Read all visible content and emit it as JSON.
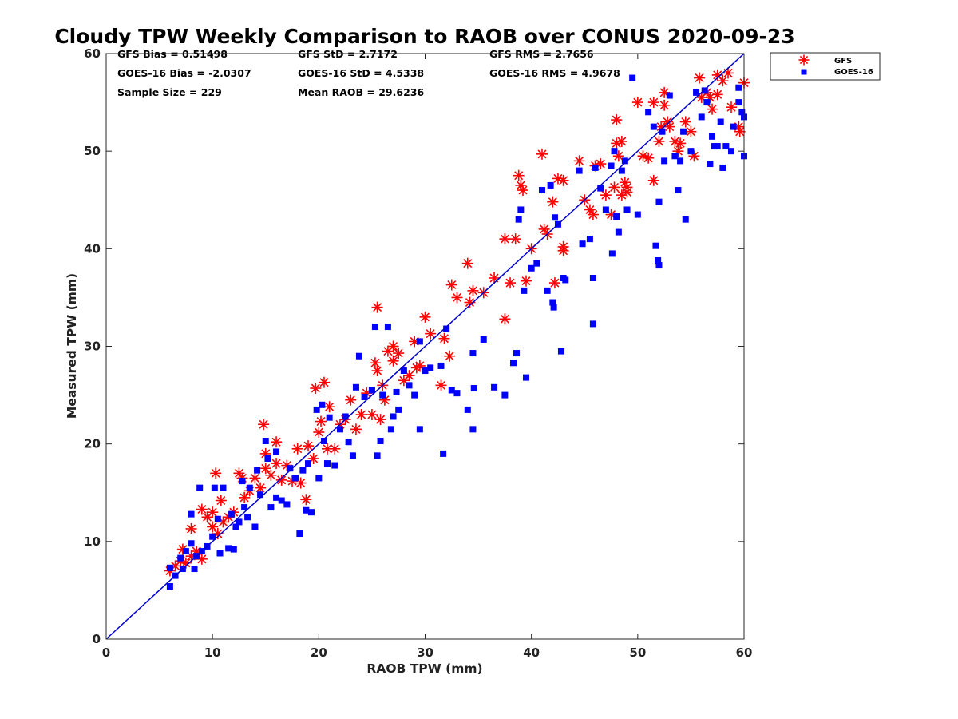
{
  "chart_data": {
    "type": "scatter",
    "title": "Cloudy TPW Weekly Comparison to RAOB over CONUS 2020-09-23",
    "xlabel": "RAOB TPW (mm)",
    "ylabel": "Measured TPW (mm)",
    "xlim": [
      0,
      60
    ],
    "ylim": [
      0,
      60
    ],
    "xticks": [
      0,
      10,
      20,
      30,
      40,
      50,
      60
    ],
    "yticks": [
      0,
      10,
      20,
      30,
      40,
      50,
      60
    ],
    "grid": false,
    "legend_position": "top-right, outside plot",
    "reference_line": {
      "from": [
        0,
        0
      ],
      "to": [
        60,
        60
      ],
      "color": "#0000cc"
    },
    "stats": {
      "gfs_bias": "GFS Bias = 0.51498",
      "gfs_std": "GFS StD = 2.7172",
      "gfs_rms": "GFS RMS = 2.7656",
      "goes_bias": "GOES-16 Bias = -2.0307",
      "goes_std": "GOES-16 StD = 4.5338",
      "goes_rms": "GOES-16 RMS = 4.9678",
      "sample_size": "Sample Size = 229",
      "mean_raob": "Mean RAOB = 29.6236"
    },
    "series": [
      {
        "name": "GFS",
        "marker": "asterisk",
        "color": "#ff0000",
        "points": [
          [
            6,
            7
          ],
          [
            6.5,
            7.5
          ],
          [
            7,
            8
          ],
          [
            7.2,
            9.2
          ],
          [
            7.5,
            7.8
          ],
          [
            8,
            8.5
          ],
          [
            8,
            11.3
          ],
          [
            8.5,
            9
          ],
          [
            9,
            8.2
          ],
          [
            9,
            13.3
          ],
          [
            9.5,
            12.5
          ],
          [
            10,
            11.5
          ],
          [
            10,
            13
          ],
          [
            10.3,
            17
          ],
          [
            10.5,
            10.8
          ],
          [
            10.8,
            14.2
          ],
          [
            11,
            12
          ],
          [
            11.5,
            12.5
          ],
          [
            12,
            13
          ],
          [
            12.5,
            17
          ],
          [
            12.8,
            16.5
          ],
          [
            13,
            14.5
          ],
          [
            13.5,
            15.2
          ],
          [
            14,
            16.5
          ],
          [
            14.5,
            15.5
          ],
          [
            14.8,
            22
          ],
          [
            15,
            19
          ],
          [
            15,
            17.5
          ],
          [
            15.5,
            16.8
          ],
          [
            16,
            18
          ],
          [
            16,
            20.2
          ],
          [
            16.5,
            16.3
          ],
          [
            17,
            17.8
          ],
          [
            17.5,
            16.2
          ],
          [
            18,
            19.5
          ],
          [
            18.3,
            16
          ],
          [
            18.8,
            14.3
          ],
          [
            19,
            19.8
          ],
          [
            19.5,
            18.5
          ],
          [
            19.7,
            25.7
          ],
          [
            20,
            21.2
          ],
          [
            20.2,
            22.3
          ],
          [
            20.5,
            26.3
          ],
          [
            20.8,
            19.5
          ],
          [
            21,
            23.8
          ],
          [
            21.5,
            19.5
          ],
          [
            22,
            22
          ],
          [
            22.5,
            22.5
          ],
          [
            23,
            24.5
          ],
          [
            23.5,
            21.5
          ],
          [
            24,
            23
          ],
          [
            24.5,
            25.2
          ],
          [
            25,
            23
          ],
          [
            25.3,
            28.3
          ],
          [
            25.5,
            27.5
          ],
          [
            25.5,
            34
          ],
          [
            25.8,
            22.5
          ],
          [
            26,
            26
          ],
          [
            26.2,
            24.5
          ],
          [
            26.5,
            29.5
          ],
          [
            27,
            28.5
          ],
          [
            27,
            30
          ],
          [
            27.5,
            29.3
          ],
          [
            28,
            26.5
          ],
          [
            28.5,
            27
          ],
          [
            29,
            30.5
          ],
          [
            29.2,
            27.8
          ],
          [
            29.5,
            28
          ],
          [
            30,
            33
          ],
          [
            30.5,
            31.3
          ],
          [
            31.5,
            26
          ],
          [
            31.8,
            30.8
          ],
          [
            32.3,
            29
          ],
          [
            32.5,
            36.3
          ],
          [
            33,
            35
          ],
          [
            34,
            38.5
          ],
          [
            34.2,
            34.5
          ],
          [
            34.5,
            35.7
          ],
          [
            35.5,
            35.5
          ],
          [
            36.5,
            37
          ],
          [
            37.5,
            41
          ],
          [
            37.5,
            32.8
          ],
          [
            38,
            36.5
          ],
          [
            38.5,
            41
          ],
          [
            38.8,
            47.5
          ],
          [
            39,
            46.5
          ],
          [
            39.2,
            46
          ],
          [
            39.5,
            36.7
          ],
          [
            40,
            40
          ],
          [
            41,
            49.7
          ],
          [
            41.2,
            42
          ],
          [
            41.5,
            41.5
          ],
          [
            42,
            44.8
          ],
          [
            42.2,
            36.5
          ],
          [
            42.5,
            47.2
          ],
          [
            43,
            39.8
          ],
          [
            43,
            40.2
          ],
          [
            43,
            47
          ],
          [
            44.5,
            49
          ],
          [
            45,
            45
          ],
          [
            45.5,
            44
          ],
          [
            45.8,
            43.5
          ],
          [
            46,
            48.5
          ],
          [
            46.5,
            48.7
          ],
          [
            47,
            45.5
          ],
          [
            47.5,
            43.5
          ],
          [
            47.8,
            46.3
          ],
          [
            48,
            50.8
          ],
          [
            48,
            53.2
          ],
          [
            48.2,
            49.5
          ],
          [
            48.5,
            51
          ],
          [
            48.5,
            45.5
          ],
          [
            48.8,
            46.8
          ],
          [
            49,
            45.8
          ],
          [
            49,
            46.3
          ],
          [
            50,
            55
          ],
          [
            50.5,
            49.5
          ],
          [
            51,
            49.3
          ],
          [
            51.5,
            55
          ],
          [
            51.5,
            47
          ],
          [
            52,
            51
          ],
          [
            52.2,
            52.5
          ],
          [
            52.5,
            56
          ],
          [
            52.5,
            54.7
          ],
          [
            52.8,
            53
          ],
          [
            53,
            52.5
          ],
          [
            53.5,
            51
          ],
          [
            53.8,
            50
          ],
          [
            54,
            50.8
          ],
          [
            54.5,
            53
          ],
          [
            55,
            52
          ],
          [
            55.3,
            49.5
          ],
          [
            55.8,
            57.5
          ],
          [
            56,
            55.5
          ],
          [
            56.5,
            56
          ],
          [
            56.8,
            55.5
          ],
          [
            57,
            54.3
          ],
          [
            57.5,
            55.8
          ],
          [
            57.5,
            57.8
          ],
          [
            58,
            57.2
          ],
          [
            58.5,
            58
          ],
          [
            58.8,
            54.5
          ],
          [
            59.5,
            52.5
          ],
          [
            59.6,
            52
          ],
          [
            60,
            57
          ]
        ]
      },
      {
        "name": "GOES-16",
        "marker": "square",
        "color": "#0000ff",
        "points": [
          [
            6,
            5.4
          ],
          [
            6,
            7.3
          ],
          [
            6.5,
            6.5
          ],
          [
            7,
            8.3
          ],
          [
            7.2,
            7.2
          ],
          [
            7.5,
            9
          ],
          [
            8,
            9.8
          ],
          [
            8,
            12.8
          ],
          [
            8.3,
            7.2
          ],
          [
            8.5,
            8.5
          ],
          [
            8.8,
            15.5
          ],
          [
            9,
            9
          ],
          [
            9.5,
            9.5
          ],
          [
            10,
            10.5
          ],
          [
            10.2,
            15.5
          ],
          [
            10.5,
            12.3
          ],
          [
            10.7,
            8.8
          ],
          [
            11,
            15.5
          ],
          [
            11.5,
            9.3
          ],
          [
            11.8,
            12.8
          ],
          [
            12,
            9.2
          ],
          [
            12.2,
            11.5
          ],
          [
            12.5,
            12
          ],
          [
            12.8,
            16.2
          ],
          [
            13,
            13.5
          ],
          [
            13.3,
            12.5
          ],
          [
            13.5,
            15.5
          ],
          [
            14,
            11.5
          ],
          [
            14.2,
            17.3
          ],
          [
            14.5,
            14.8
          ],
          [
            15,
            20.3
          ],
          [
            15.2,
            18.5
          ],
          [
            15.5,
            13.5
          ],
          [
            16,
            19.2
          ],
          [
            16,
            14.5
          ],
          [
            16.5,
            14.2
          ],
          [
            17,
            13.8
          ],
          [
            17.3,
            17.5
          ],
          [
            17.8,
            16.5
          ],
          [
            18.2,
            10.8
          ],
          [
            18.5,
            17.3
          ],
          [
            18.8,
            13.2
          ],
          [
            19,
            18
          ],
          [
            19.3,
            13
          ],
          [
            19.8,
            23.5
          ],
          [
            20,
            16.5
          ],
          [
            20.3,
            24
          ],
          [
            20.5,
            20.3
          ],
          [
            20.8,
            18
          ],
          [
            21,
            22.7
          ],
          [
            21.5,
            17.8
          ],
          [
            22,
            21.5
          ],
          [
            22.5,
            22.8
          ],
          [
            22.8,
            20.2
          ],
          [
            23.2,
            18.8
          ],
          [
            23.5,
            25.8
          ],
          [
            23.8,
            29
          ],
          [
            24.3,
            24.8
          ],
          [
            25,
            25.5
          ],
          [
            25.3,
            32
          ],
          [
            25.5,
            18.8
          ],
          [
            25.8,
            20.3
          ],
          [
            26,
            25
          ],
          [
            26.5,
            32
          ],
          [
            26.8,
            21.5
          ],
          [
            27,
            22.8
          ],
          [
            27.3,
            25.3
          ],
          [
            27.5,
            23.5
          ],
          [
            28,
            27.5
          ],
          [
            28.5,
            26
          ],
          [
            29,
            25
          ],
          [
            29.5,
            21.5
          ],
          [
            29.5,
            30.5
          ],
          [
            30,
            27.5
          ],
          [
            30.5,
            27.8
          ],
          [
            31.5,
            28
          ],
          [
            31.7,
            19
          ],
          [
            32,
            31.8
          ],
          [
            32.5,
            25.5
          ],
          [
            33,
            25.2
          ],
          [
            34,
            23.5
          ],
          [
            34.5,
            21.5
          ],
          [
            34.5,
            29.3
          ],
          [
            34.6,
            25.7
          ],
          [
            35.5,
            30.7
          ],
          [
            36.5,
            25.8
          ],
          [
            37.5,
            25
          ],
          [
            38.3,
            28.3
          ],
          [
            38.6,
            29.3
          ],
          [
            38.8,
            43
          ],
          [
            39,
            44
          ],
          [
            39.3,
            35.7
          ],
          [
            39.5,
            26.8
          ],
          [
            40,
            38
          ],
          [
            40.5,
            38.5
          ],
          [
            41,
            46
          ],
          [
            41.5,
            35.7
          ],
          [
            41.8,
            46.5
          ],
          [
            42,
            34.5
          ],
          [
            42.1,
            34
          ],
          [
            42.2,
            43.2
          ],
          [
            42.5,
            42.5
          ],
          [
            42.8,
            29.5
          ],
          [
            43,
            37
          ],
          [
            43.2,
            36.8
          ],
          [
            44.5,
            48
          ],
          [
            44.8,
            40.5
          ],
          [
            45.5,
            41
          ],
          [
            45.8,
            32.3
          ],
          [
            45.8,
            37
          ],
          [
            46,
            48.3
          ],
          [
            46.5,
            46.2
          ],
          [
            47,
            44
          ],
          [
            47.5,
            48.5
          ],
          [
            47.6,
            39.5
          ],
          [
            47.8,
            50
          ],
          [
            48,
            43.3
          ],
          [
            48.2,
            41.7
          ],
          [
            48.5,
            48
          ],
          [
            48.8,
            49
          ],
          [
            49,
            44
          ],
          [
            49.5,
            57.5
          ],
          [
            50,
            43.5
          ],
          [
            51,
            54
          ],
          [
            51.5,
            52.5
          ],
          [
            51.7,
            40.3
          ],
          [
            51.9,
            38.8
          ],
          [
            52,
            38.3
          ],
          [
            52,
            44.8
          ],
          [
            52.3,
            52
          ],
          [
            52.5,
            49
          ],
          [
            53,
            55.7
          ],
          [
            53.5,
            49.5
          ],
          [
            53.8,
            46
          ],
          [
            54,
            49
          ],
          [
            54.3,
            52
          ],
          [
            54.5,
            43
          ],
          [
            55,
            50
          ],
          [
            55.5,
            56
          ],
          [
            56,
            53.5
          ],
          [
            56.3,
            56.2
          ],
          [
            56.5,
            55
          ],
          [
            56.8,
            48.7
          ],
          [
            57,
            51.5
          ],
          [
            57.2,
            50.5
          ],
          [
            57.5,
            50.5
          ],
          [
            57.8,
            53
          ],
          [
            58,
            48.3
          ],
          [
            58.3,
            50.5
          ],
          [
            58.8,
            50
          ],
          [
            59,
            52.5
          ],
          [
            59.5,
            55
          ],
          [
            59.5,
            56.5
          ],
          [
            60,
            53.5
          ],
          [
            60,
            49.5
          ],
          [
            59.8,
            54
          ]
        ]
      }
    ]
  }
}
